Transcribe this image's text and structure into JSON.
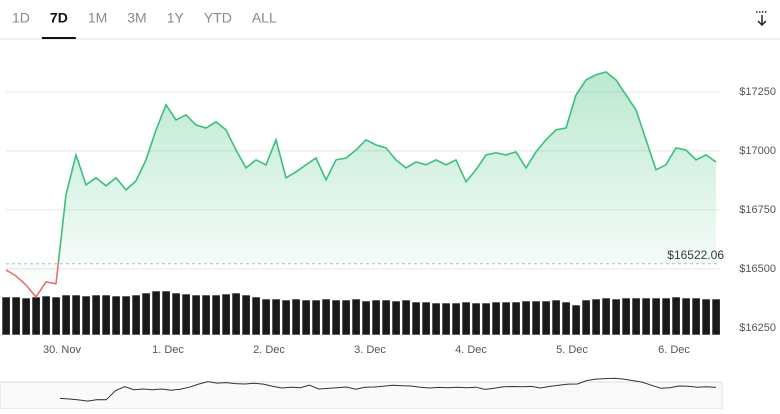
{
  "tabs": [
    "1D",
    "7D",
    "1M",
    "3M",
    "1Y",
    "YTD",
    "ALL"
  ],
  "selected_tab": 1,
  "chart_data": {
    "type": "line",
    "series": [
      {
        "name": "Price",
        "color": "#3bbf7a",
        "below_color": "#e8706c",
        "values": [
          16496,
          16470,
          16432,
          16381,
          16445,
          16437,
          16814,
          16983,
          16856,
          16886,
          16852,
          16886,
          16835,
          16873,
          16962,
          17089,
          17195,
          17131,
          17153,
          17110,
          17097,
          17123,
          17089,
          17004,
          16928,
          16962,
          16941,
          17047,
          16886,
          16911,
          16941,
          16970,
          16877,
          16962,
          16970,
          17004,
          17047,
          17025,
          17013,
          16962,
          16928,
          16953,
          16941,
          16962,
          16941,
          16962,
          16869,
          16920,
          16983,
          16992,
          16983,
          16996,
          16928,
          16996,
          17047,
          17089,
          17097,
          17237,
          17301,
          17322,
          17335,
          17301,
          17237,
          17174,
          17047,
          16920,
          16941,
          17013,
          17004,
          16962,
          16983,
          16953
        ]
      }
    ],
    "volume": [
      38,
      38,
      37,
      38,
      39,
      38,
      40,
      40,
      39,
      40,
      40,
      39,
      39,
      40,
      42,
      44,
      44,
      42,
      41,
      40,
      40,
      40,
      41,
      42,
      40,
      38,
      36,
      36,
      35,
      36,
      35,
      35,
      36,
      35,
      35,
      36,
      34,
      35,
      35,
      34,
      35,
      33,
      33,
      32,
      32,
      32,
      33,
      32,
      32,
      33,
      33,
      33,
      34,
      34,
      34,
      35,
      33,
      30,
      35,
      36,
      37,
      36,
      37,
      37,
      37,
      37,
      37,
      38,
      37,
      37,
      36,
      36
    ],
    "volume_lim": [
      0,
      60
    ],
    "reference": {
      "value": 16522.06,
      "label": "$16522.06"
    },
    "xlim": [
      0,
      71.4
    ],
    "xticks": [
      {
        "value": 5.6,
        "label": "30. Nov"
      },
      {
        "value": 16.2,
        "label": "1. Dec"
      },
      {
        "value": 26.3,
        "label": "2. Dec"
      },
      {
        "value": 36.4,
        "label": "3. Dec"
      },
      {
        "value": 46.5,
        "label": "4. Dec"
      },
      {
        "value": 56.6,
        "label": "5. Dec"
      },
      {
        "value": 66.8,
        "label": "6. Dec"
      }
    ],
    "ylim": [
      16220,
      17470
    ],
    "yticks": [
      {
        "value": 16250,
        "label": "$16250"
      },
      {
        "value": 16500,
        "label": "$16500"
      },
      {
        "value": 16750,
        "label": "$16750"
      },
      {
        "value": 17000,
        "label": "$17000"
      },
      {
        "value": 17250,
        "label": "$17250"
      }
    ],
    "grid": true
  }
}
